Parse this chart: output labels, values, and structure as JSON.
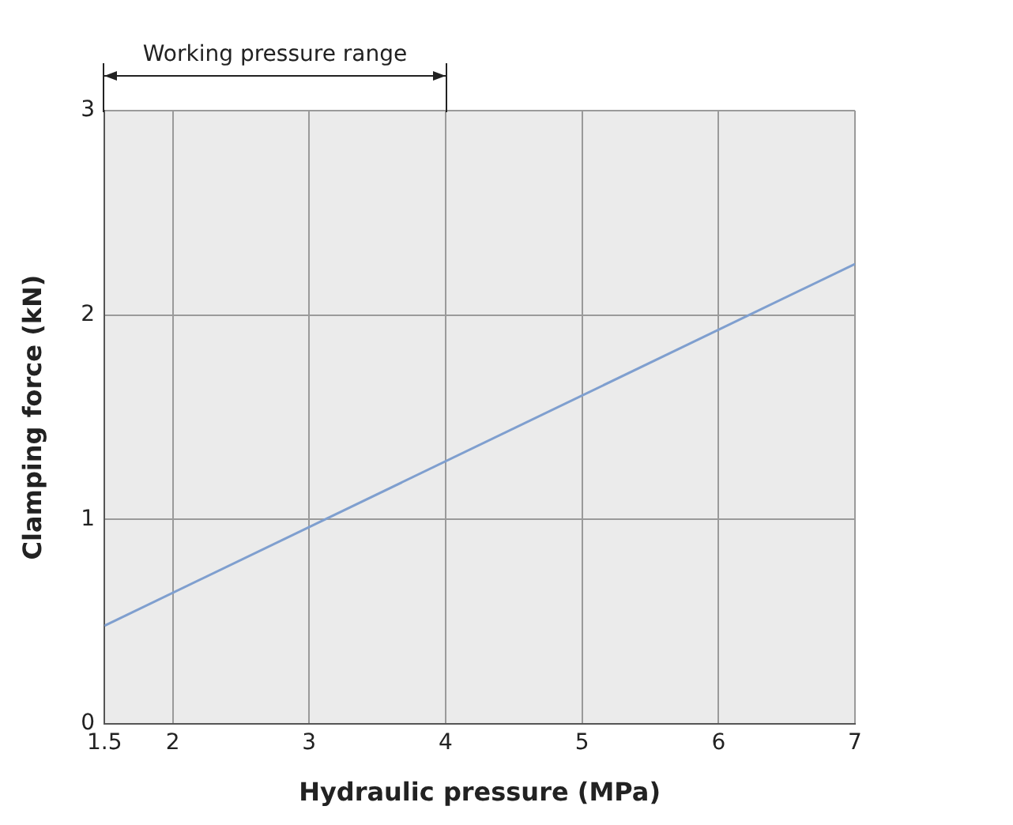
{
  "chart_data": {
    "type": "line",
    "xlabel": "Hydraulic pressure (MPa)",
    "ylabel": "Clamping force (kN)",
    "x": [
      1.5,
      7
    ],
    "series": [
      {
        "color": "#7f9fcf",
        "values": [
          0.48,
          2.25
        ]
      }
    ],
    "xlim": [
      1.5,
      7
    ],
    "xticks": [
      1.5,
      2,
      3,
      4,
      5,
      6,
      7
    ],
    "ylim": [
      0,
      3
    ],
    "yticks": [
      0,
      1,
      2,
      3
    ],
    "grid": true,
    "legend": false,
    "marker": "none",
    "line_style": "solid",
    "annotations": [
      "Working pressure range"
    ]
  }
}
